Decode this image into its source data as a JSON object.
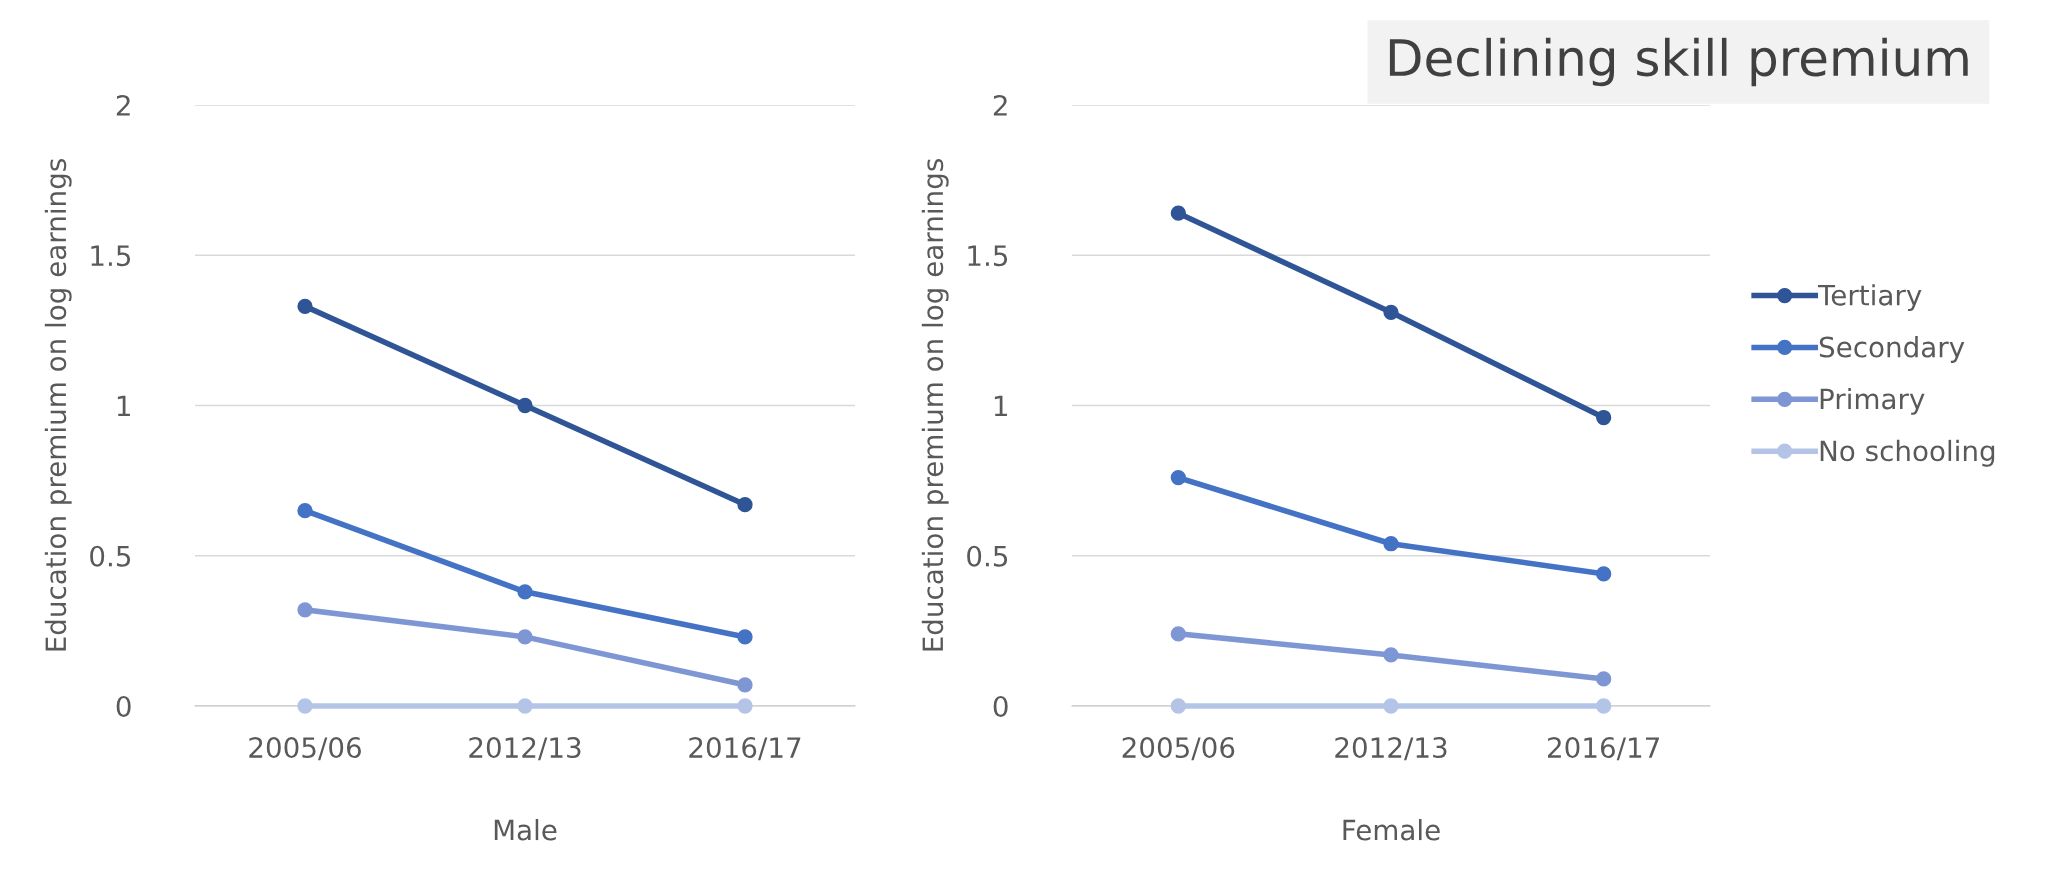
{
  "chart_data": [
    {
      "type": "line",
      "categories": [
        "2005/06",
        "2012/13",
        "2016/17"
      ],
      "xlabel": "Male",
      "ylabel": "Education premium on log earnings",
      "ylim": [
        0,
        2
      ],
      "yticks": [
        0,
        0.5,
        1,
        1.5,
        2
      ],
      "grid": "y",
      "marker": "circle",
      "line_style": "solid",
      "series": [
        {
          "color": "#2f5597",
          "values": [
            1.33,
            1.0,
            0.67
          ]
        },
        {
          "color": "#4472c4",
          "values": [
            0.65,
            0.38,
            0.23
          ]
        },
        {
          "color": "#7f96d4",
          "values": [
            0.32,
            0.23,
            0.07
          ]
        },
        {
          "color": "#b4c4e7",
          "values": [
            0,
            0,
            0
          ]
        }
      ]
    },
    {
      "type": "line",
      "title": "Declining skill premium",
      "categories": [
        "2005/06",
        "2012/13",
        "2016/17"
      ],
      "xlabel": "Female",
      "ylabel": "Education premium on log earnings",
      "ylim": [
        0,
        2
      ],
      "yticks": [
        0,
        0.5,
        1,
        1.5,
        2
      ],
      "grid": "y",
      "marker": "circle",
      "line_style": "solid",
      "legend": "right",
      "series": [
        {
          "name": "Tertiary",
          "color": "#2f5597",
          "values": [
            1.64,
            1.31,
            0.96
          ]
        },
        {
          "name": "Secondary",
          "color": "#4472c4",
          "values": [
            0.76,
            0.54,
            0.44
          ]
        },
        {
          "name": "Primary",
          "color": "#7f96d4",
          "values": [
            0.24,
            0.17,
            0.09
          ]
        },
        {
          "name": "No schooling",
          "color": "#b4c4e7",
          "values": [
            0,
            0,
            0
          ]
        }
      ]
    }
  ]
}
